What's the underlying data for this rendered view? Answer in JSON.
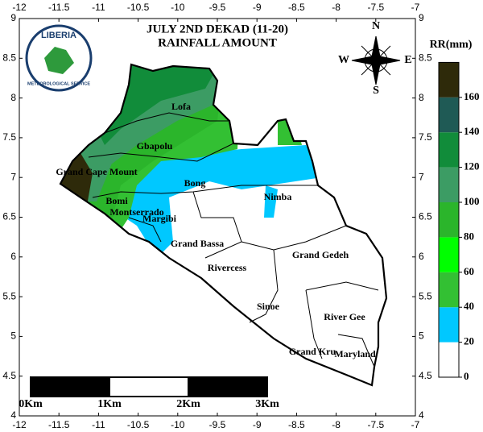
{
  "title": [
    "JULY 2ND DEKAD (11-20)",
    "RAINFALL AMOUNT"
  ],
  "logo": {
    "name": "LIBERIA",
    "subtitle": "METEOROLOGICAL SERVICE"
  },
  "compass": {
    "north": "N",
    "south": "S",
    "east": "E",
    "west": "W"
  },
  "axes": {
    "lon_ticks": [
      -12,
      -11.5,
      -11,
      -10.5,
      -10,
      -9.5,
      -9,
      -8.5,
      -8,
      -7.5,
      -7
    ],
    "lat_ticks": [
      9,
      8.5,
      8,
      7.5,
      7,
      6.5,
      6,
      5.5,
      5,
      4.5,
      4
    ]
  },
  "legend": {
    "title": "RR(mm)",
    "ticks": [
      0,
      20,
      40,
      60,
      80,
      100,
      120,
      140,
      160
    ],
    "colors": [
      "#ffffff",
      "#00c8ff",
      "#33c033",
      "#00ff00",
      "#2bb52b",
      "#3c9c64",
      "#118c3a",
      "#1f5a55",
      "#2e2a0a"
    ]
  },
  "scale_bar": [
    "0Km",
    "1Km",
    "2Km",
    "3Km"
  ],
  "regions": [
    "Lofa",
    "Gbapolu",
    "Grand Cape Mount",
    "Bong",
    "Nimba",
    "Bomi",
    "Montserrado",
    "Margibi",
    "Grand Bassa",
    "Rivercess",
    "Grand Gedeh",
    "Sinoe",
    "River Gee",
    "Grand Kru",
    "Maryland"
  ]
}
